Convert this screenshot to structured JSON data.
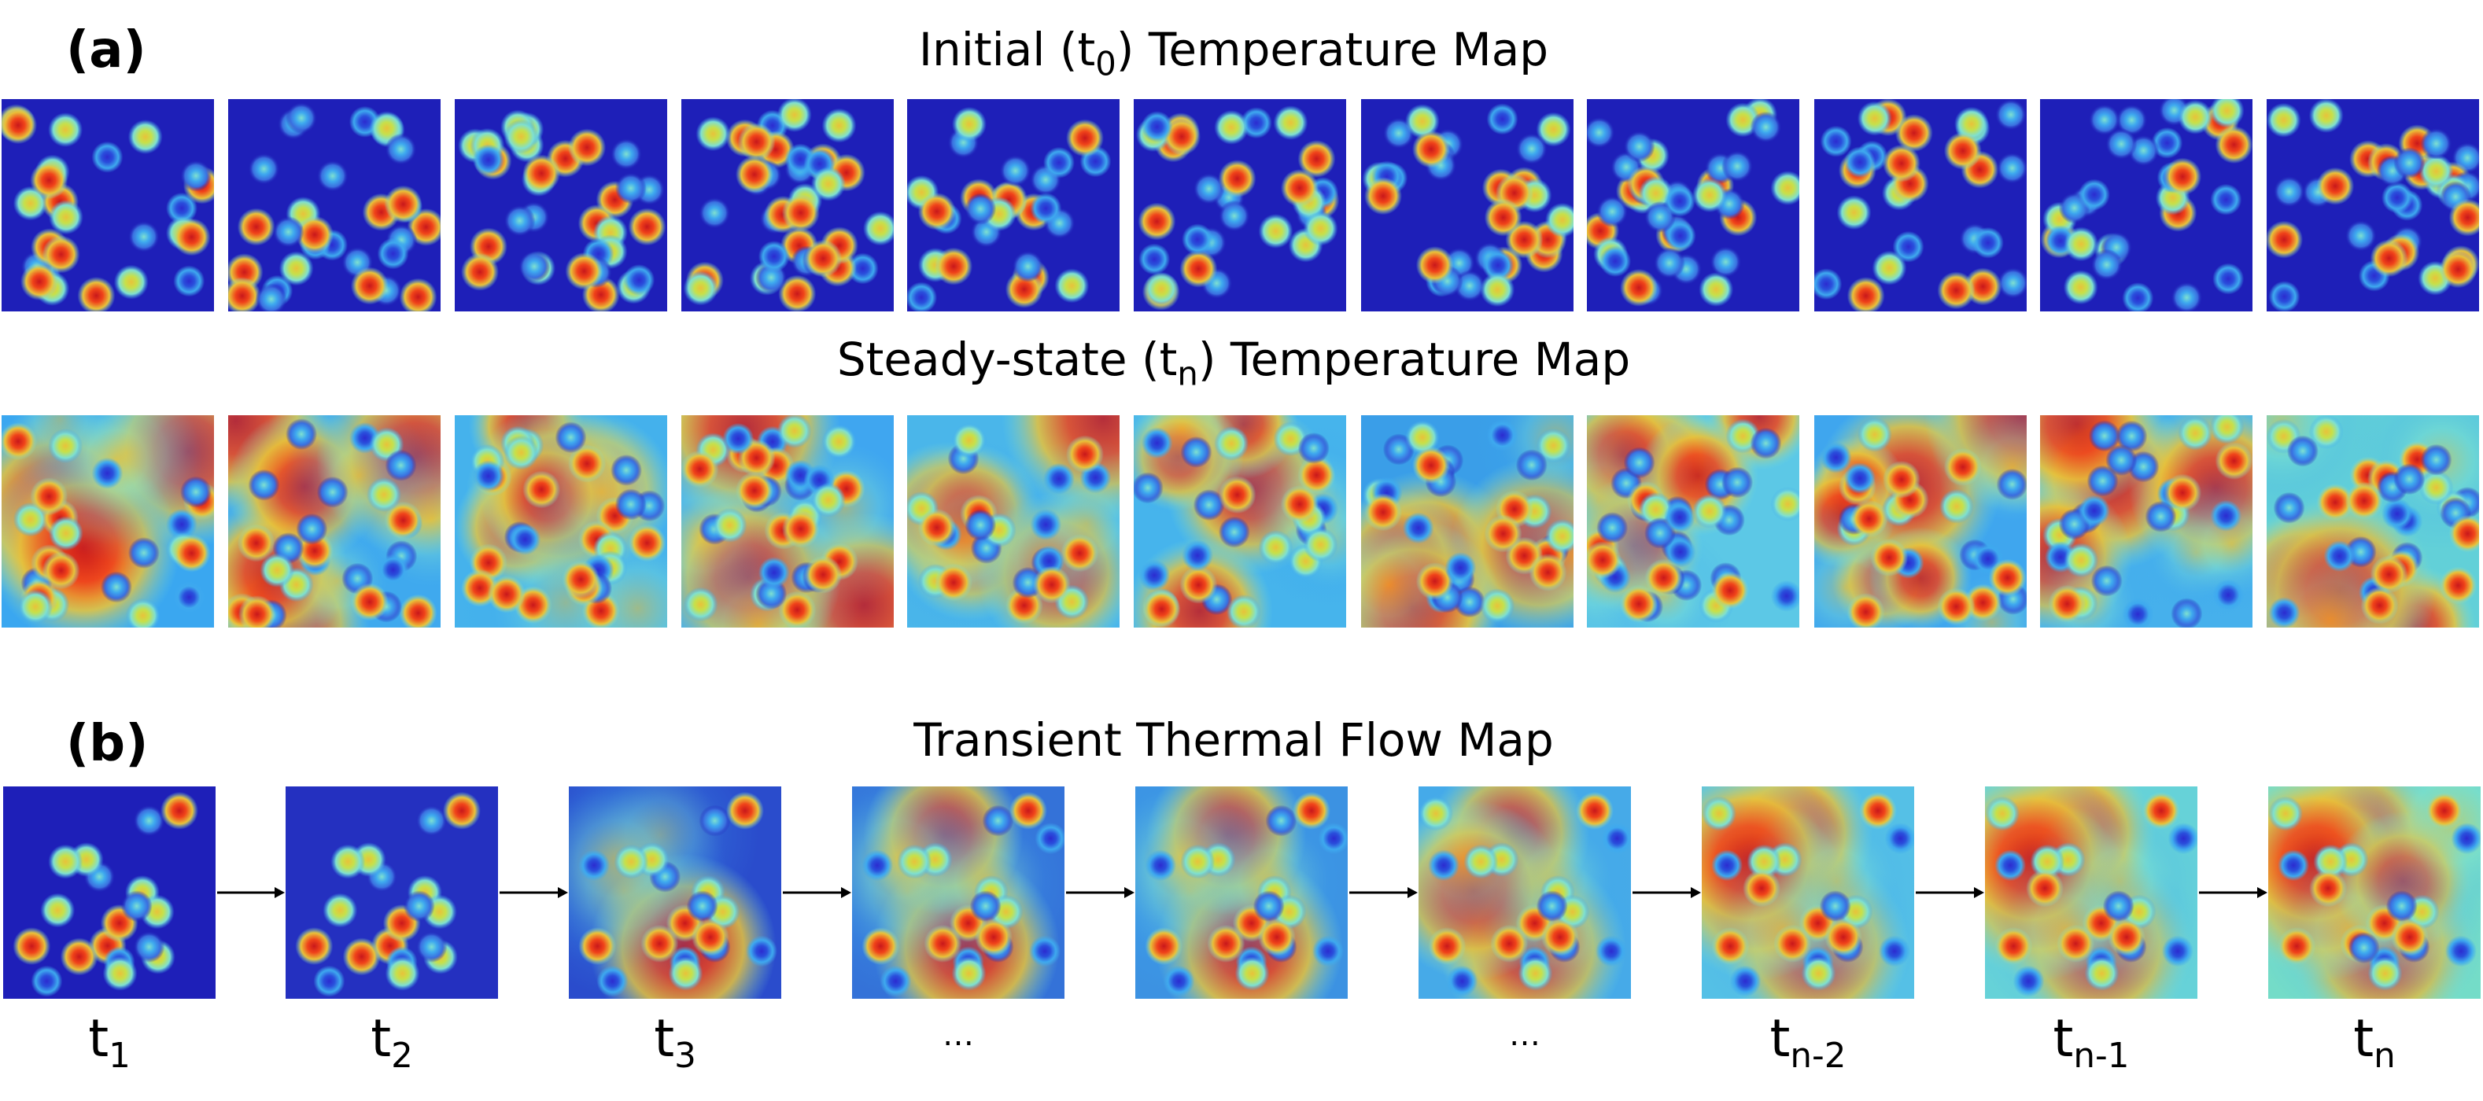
{
  "panel_a": {
    "label": "(a)",
    "title_initial": {
      "pre": "Initial (t",
      "sub": "0",
      "post": ") Temperature Map"
    },
    "title_steady": {
      "pre": "Steady-state (t",
      "sub": "n",
      "post": ") Temperature Map"
    },
    "initial_maps": 11,
    "steady_maps": 11
  },
  "panel_b": {
    "label": "(b)",
    "title": "Transient Thermal Flow Map",
    "frames": [
      {
        "main": "t",
        "sub": "1"
      },
      {
        "main": "t",
        "sub": "2"
      },
      {
        "main": "t",
        "sub": "3"
      },
      {
        "main": "…",
        "sub": ""
      },
      {
        "main": "",
        "sub": ""
      },
      {
        "main": "…",
        "sub": ""
      },
      {
        "main": "t",
        "sub": "n-2"
      },
      {
        "main": "t",
        "sub": "n-1"
      },
      {
        "main": "t",
        "sub": "n"
      }
    ]
  },
  "colors": {
    "cold": "#1e1fb8",
    "cool": "#3ea9ef",
    "mid": "#7fe0d0",
    "warm": "#e8c23a",
    "hot": "#c8171b",
    "arrow": "#000000"
  }
}
